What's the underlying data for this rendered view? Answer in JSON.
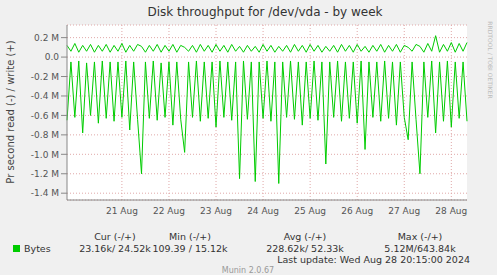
{
  "chart_data": {
    "type": "line",
    "title": "Disk throughput for /dev/vda - by week",
    "y_label": "Pr second read (-) / write (+)",
    "categories": [
      null,
      null,
      null,
      null,
      null,
      null,
      null,
      null,
      null,
      null,
      null,
      null,
      null,
      null,
      "21 Aug",
      null,
      null,
      null,
      null,
      null,
      null,
      null,
      null,
      null,
      null,
      null,
      "22 Aug",
      null,
      null,
      null,
      null,
      null,
      null,
      null,
      null,
      null,
      null,
      null,
      "23 Aug",
      null,
      null,
      null,
      null,
      null,
      null,
      null,
      null,
      null,
      null,
      null,
      "24 Aug",
      null,
      null,
      null,
      null,
      null,
      null,
      null,
      null,
      null,
      null,
      null,
      "25 Aug",
      null,
      null,
      null,
      null,
      null,
      null,
      null,
      null,
      null,
      null,
      null,
      "26 Aug",
      null,
      null,
      null,
      null,
      null,
      null,
      null,
      null,
      null,
      null,
      null,
      "27 Aug",
      null,
      null,
      null,
      null,
      null,
      null,
      null,
      null,
      null,
      null,
      null,
      "28 Aug",
      null,
      null,
      null,
      null
    ],
    "series": [
      {
        "name": "Bytes",
        "color": "#00cc00",
        "values": [
          -0.65,
          -0.05,
          -0.62,
          -0.04,
          -0.78,
          -0.06,
          -0.6,
          -0.05,
          -0.68,
          -0.04,
          -0.63,
          -0.05,
          -0.66,
          -0.05,
          -0.62,
          -0.04,
          -0.75,
          -0.05,
          -0.64,
          -1.2,
          -0.05,
          -0.63,
          -0.04,
          -0.65,
          -0.06,
          -0.62,
          -0.05,
          -0.7,
          -0.05,
          -0.64,
          -0.98,
          -0.05,
          -0.62,
          -0.04,
          -0.66,
          -0.05,
          -0.63,
          -0.05,
          -0.72,
          -0.04,
          -0.62,
          -0.05,
          -0.65,
          -0.05,
          -1.25,
          -0.04,
          -0.64,
          -0.05,
          -1.28,
          -0.05,
          -0.63,
          -0.04,
          -0.66,
          -0.05,
          -1.3,
          -0.05,
          -0.62,
          -0.04,
          -0.64,
          -0.05,
          -0.7,
          -0.05,
          -0.63,
          -0.04,
          -0.65,
          -0.05,
          -1.1,
          -0.05,
          -0.62,
          -0.04,
          -0.66,
          -0.05,
          -0.63,
          -0.05,
          -0.68,
          -0.04,
          -0.95,
          -0.05,
          -0.62,
          -0.05,
          -0.66,
          -0.04,
          -0.63,
          -0.05,
          -0.7,
          -0.05,
          -0.62,
          -0.85,
          -0.05,
          -0.64,
          -1.2,
          -0.05,
          -0.62,
          -0.04,
          -0.78,
          -0.05,
          -0.66,
          -0.04,
          -0.72,
          -0.05,
          -0.63,
          -0.05,
          -0.66
        ]
      },
      {
        "name": "Bytes",
        "color": "#00cc00",
        "values": [
          0.12,
          0.06,
          0.14,
          0.05,
          0.12,
          0.06,
          0.13,
          0.05,
          0.12,
          0.06,
          0.13,
          0.05,
          0.12,
          0.06,
          0.14,
          0.05,
          0.12,
          0.06,
          0.13,
          0.11,
          0.05,
          0.12,
          0.06,
          0.13,
          0.05,
          0.12,
          0.06,
          0.13,
          0.05,
          0.12,
          0.1,
          0.06,
          0.12,
          0.05,
          0.13,
          0.06,
          0.12,
          0.05,
          0.13,
          0.06,
          0.12,
          0.05,
          0.13,
          0.06,
          0.11,
          0.05,
          0.12,
          0.06,
          0.11,
          0.05,
          0.13,
          0.06,
          0.12,
          0.05,
          0.11,
          0.06,
          0.12,
          0.05,
          0.13,
          0.06,
          0.12,
          0.05,
          0.13,
          0.06,
          0.12,
          0.05,
          0.11,
          0.06,
          0.12,
          0.05,
          0.13,
          0.06,
          0.12,
          0.05,
          0.13,
          0.06,
          0.11,
          0.05,
          0.12,
          0.06,
          0.13,
          0.05,
          0.12,
          0.06,
          0.13,
          0.05,
          0.12,
          0.1,
          0.06,
          0.13,
          0.11,
          0.05,
          0.14,
          0.06,
          0.22,
          0.05,
          0.13,
          0.06,
          0.15,
          0.05,
          0.14,
          0.06,
          0.15
        ]
      }
    ],
    "ylim": [
      -1.47,
      0.33
    ],
    "yticks": [
      {
        "value": 0.2,
        "label": "0.2 M"
      },
      {
        "value": 0,
        "label": "0.0"
      },
      {
        "value": -0.2,
        "label": "-0.2 M"
      },
      {
        "value": -0.4,
        "label": "-0.4 M"
      },
      {
        "value": -0.6,
        "label": "-0.6 M"
      },
      {
        "value": -0.8,
        "label": "-0.8 M"
      },
      {
        "value": -1.0,
        "label": "-1.0 M"
      },
      {
        "value": -1.2,
        "label": "-1.2 M"
      },
      {
        "value": -1.4,
        "label": "-1.4 M"
      }
    ],
    "grid": true,
    "stats": {
      "columns": [
        "Cur (-/+)",
        "Min (-/+)",
        "Avg (-/+)",
        "Max (-/+)"
      ],
      "values": [
        "23.16k/ 24.52k",
        "109.39 / 15.12k",
        "228.62k/ 52.33k",
        "5.12M/643.84k"
      ]
    },
    "last_update": "Last update: Wed Aug 28 20:15:00 2024",
    "footer": "Munin 2.0.67",
    "watermark": "RRDTOOL / TOBI OETIKER"
  }
}
